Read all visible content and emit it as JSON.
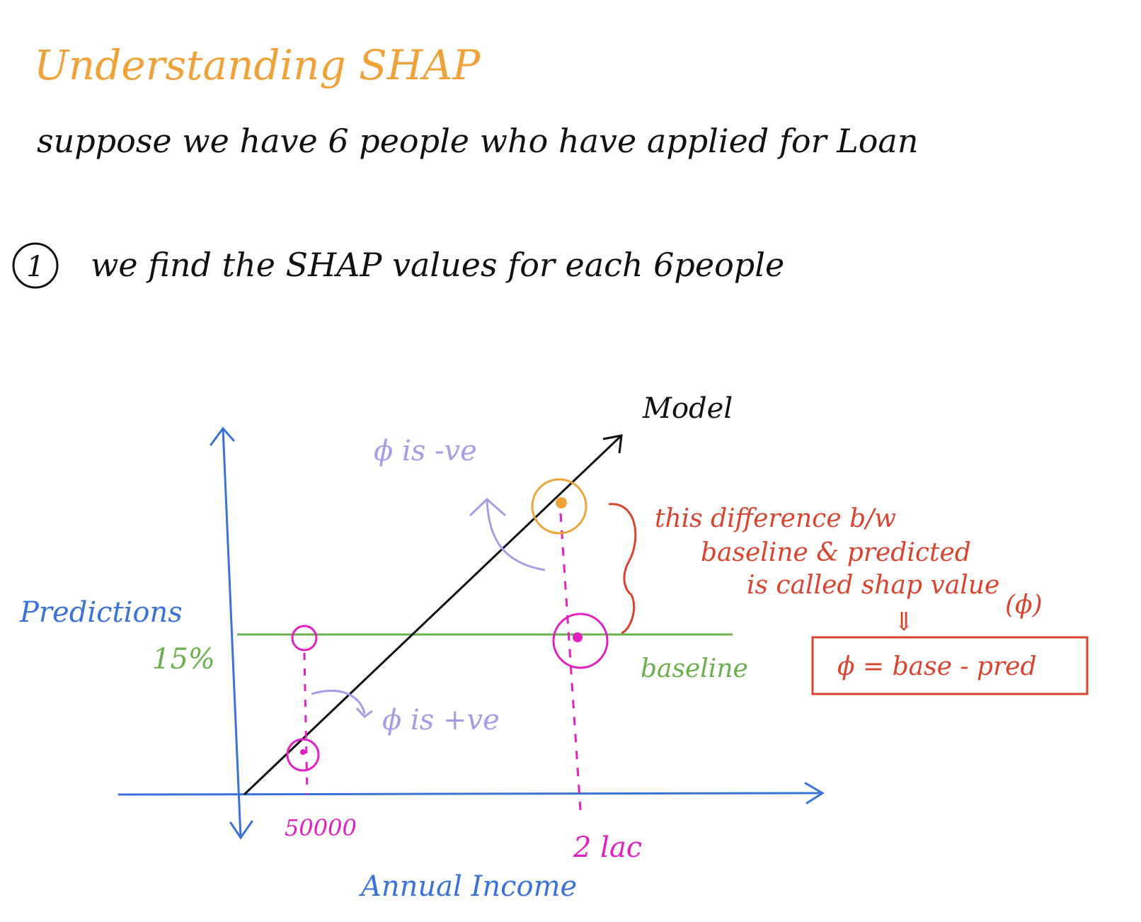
{
  "title": "Understanding SHAP",
  "intro": "suppose we have 6 people who have applied for Loan",
  "step": {
    "number": "1",
    "text": "we find the SHAP values for each 6people"
  },
  "diagram": {
    "model_label": "Model",
    "y_axis_label": "Predictions",
    "x_axis_label": "Annual Income",
    "baseline_value": "15%",
    "baseline_label": "baseline",
    "x_tick_1": "50000",
    "x_tick_2": "2 lac",
    "phi_negative_note": "ϕ is -ve",
    "phi_positive_note": "ϕ is +ve",
    "explanation": {
      "line1": "this difference b/w",
      "line2": "baseline & predicted",
      "line3": "is called shap value",
      "line4": "(ϕ)"
    },
    "down_arrow": "⇓",
    "formula": "ϕ = base - pred"
  },
  "colors": {
    "title": "#f0a23a",
    "text": "#111111",
    "axis": "#3b72d9",
    "baseline": "#6ab04c",
    "model_line": "#111111",
    "magenta": "#e020c0",
    "orange_point": "#f0a23a",
    "lavender": "#a79ce8",
    "red": "#d9442f"
  }
}
